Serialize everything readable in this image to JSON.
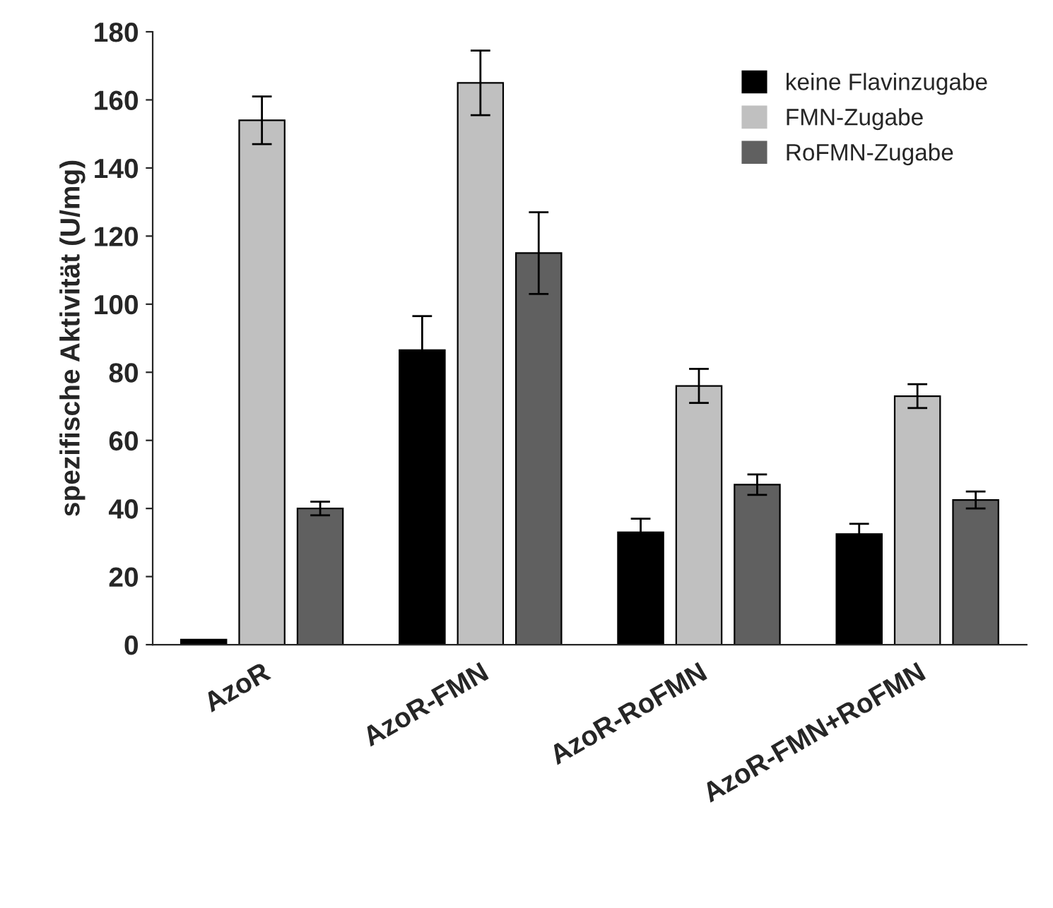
{
  "chart_data": {
    "type": "bar",
    "ylabel": "spezifische Aktivität (U/mg)",
    "categories": [
      "AzoR",
      "AzoR-FMN",
      "AzoR-RoFMN",
      "AzoR-FMN+RoFMN"
    ],
    "series": [
      {
        "name": "keine Flavinzugabe",
        "color": "#000000",
        "values": [
          1.5,
          86.5,
          33,
          32.5
        ],
        "errors": [
          null,
          10,
          4,
          3
        ]
      },
      {
        "name": "FMN-Zugabe",
        "color": "#c0c0c0",
        "values": [
          154,
          165,
          76,
          73
        ],
        "errors": [
          7,
          9.5,
          5,
          3.5
        ]
      },
      {
        "name": "RoFMN-Zugabe",
        "color": "#606060",
        "values": [
          40,
          115,
          47,
          42.5
        ],
        "errors": [
          2,
          12,
          3,
          2.5
        ]
      }
    ],
    "ylim": [
      0,
      180
    ],
    "yticks": [
      0,
      20,
      40,
      60,
      80,
      100,
      120,
      140,
      160,
      180
    ],
    "grid": false,
    "legend": "top right"
  }
}
